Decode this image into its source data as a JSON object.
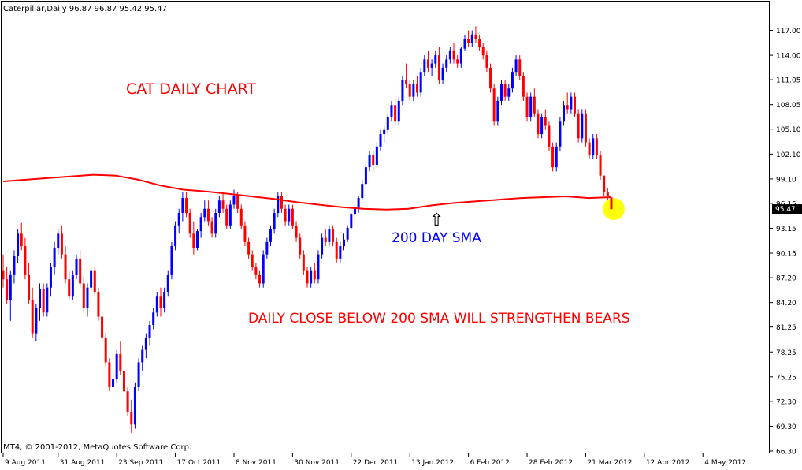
{
  "header": {
    "symbol_info": "Caterpillar,Daily  96.87 96.87 95.42 95.47",
    "copyright": "MT4, © 2001-2012, MetaQuotes Software Corp."
  },
  "annotations": {
    "title": "CAT DAILY CHART",
    "sma_label": "200 DAY SMA",
    "note": "DAILY CLOSE BELOW 200 SMA WILL STRENGTHEN BEARS",
    "arrow_glyph": "⇧"
  },
  "colors": {
    "bull": "#0000ff",
    "bear": "#ff0000",
    "sma": "#ff0000",
    "title_text": "#ff0000",
    "sma_text": "#0000ff",
    "note_text": "#ff0000",
    "highlight": "#ffff00",
    "price_tag_bg": "#000000",
    "price_tag_text": "#ffffff"
  },
  "chart_data": {
    "type": "candlestick",
    "title": "CAT DAILY CHART",
    "y_axis": {
      "ylim": [
        66.3,
        118.0
      ],
      "ticks": [
        "117.00",
        "114.00",
        "111.05",
        "108.05",
        "105.10",
        "102.10",
        "99.10",
        "96.15",
        "93.15",
        "90.15",
        "87.20",
        "84.20",
        "81.25",
        "78.25",
        "75.25",
        "72.30",
        "69.30",
        "66.30"
      ],
      "tick_values": [
        117.0,
        114.0,
        111.05,
        108.05,
        105.1,
        102.1,
        99.1,
        96.15,
        93.15,
        90.15,
        87.2,
        84.2,
        81.25,
        78.25,
        75.25,
        72.3,
        69.3,
        66.3
      ],
      "position": "right"
    },
    "x_axis": {
      "tick_labels": [
        "9 Aug 2011",
        "31 Aug 2011",
        "23 Sep 2011",
        "17 Oct 2011",
        "8 Nov 2011",
        "30 Nov 2011",
        "22 Dec 2011",
        "13 Jan 2012",
        "6 Feb 2012",
        "28 Feb 2012",
        "21 Mar 2012",
        "12 Apr 2012",
        "4 May 2012"
      ],
      "tick_index": [
        0,
        15,
        31,
        47,
        63,
        79,
        95,
        111,
        127,
        143,
        159,
        175,
        191
      ]
    },
    "last_price": "95.47",
    "last_price_value": 95.47,
    "grid": false,
    "candles_ohlc": [
      [
        88.0,
        90.0,
        86.0,
        87.0
      ],
      [
        87.0,
        88.5,
        84.0,
        84.5
      ],
      [
        84.5,
        88.0,
        82.0,
        87.5
      ],
      [
        87.5,
        90.5,
        86.5,
        89.8
      ],
      [
        89.8,
        93.0,
        89.0,
        92.5
      ],
      [
        92.5,
        93.8,
        90.5,
        91.0
      ],
      [
        91.0,
        92.0,
        87.0,
        87.5
      ],
      [
        87.5,
        89.0,
        84.0,
        84.5
      ],
      [
        84.5,
        86.0,
        80.0,
        80.5
      ],
      [
        80.5,
        84.0,
        79.5,
        83.5
      ],
      [
        83.5,
        86.5,
        82.0,
        85.8
      ],
      [
        85.8,
        86.5,
        82.5,
        83.0
      ],
      [
        83.0,
        86.5,
        82.5,
        86.0
      ],
      [
        86.0,
        89.0,
        85.0,
        88.5
      ],
      [
        88.5,
        91.5,
        87.5,
        90.8
      ],
      [
        90.8,
        93.0,
        90.0,
        92.5
      ],
      [
        92.5,
        93.5,
        89.5,
        90.0
      ],
      [
        90.0,
        91.0,
        86.5,
        87.0
      ],
      [
        87.0,
        88.0,
        84.5,
        85.0
      ],
      [
        85.0,
        88.0,
        84.5,
        87.5
      ],
      [
        87.5,
        90.0,
        87.0,
        89.5
      ],
      [
        89.5,
        90.5,
        86.0,
        86.5
      ],
      [
        86.5,
        87.5,
        83.0,
        83.5
      ],
      [
        83.5,
        86.5,
        82.5,
        86.0
      ],
      [
        86.0,
        88.5,
        85.5,
        88.0
      ],
      [
        88.0,
        88.5,
        85.0,
        85.5
      ],
      [
        85.5,
        86.0,
        82.0,
        82.5
      ],
      [
        82.5,
        83.0,
        79.5,
        80.0
      ],
      [
        80.0,
        80.5,
        76.5,
        77.0
      ],
      [
        77.0,
        77.5,
        73.5,
        74.0
      ],
      [
        74.0,
        75.5,
        72.5,
        75.0
      ],
      [
        75.0,
        78.5,
        74.5,
        78.0
      ],
      [
        78.0,
        79.5,
        75.5,
        76.0
      ],
      [
        76.0,
        77.0,
        73.0,
        73.5
      ],
      [
        73.5,
        74.0,
        70.5,
        71.0
      ],
      [
        71.0,
        72.5,
        68.5,
        69.5
      ],
      [
        69.5,
        74.5,
        69.0,
        74.0
      ],
      [
        74.0,
        77.5,
        73.5,
        77.0
      ],
      [
        77.0,
        79.0,
        76.0,
        78.5
      ],
      [
        78.5,
        80.5,
        77.5,
        80.0
      ],
      [
        80.0,
        82.0,
        79.0,
        81.5
      ],
      [
        81.5,
        83.5,
        81.0,
        83.0
      ],
      [
        83.0,
        85.5,
        82.5,
        85.0
      ],
      [
        85.0,
        86.0,
        82.5,
        83.5
      ],
      [
        83.5,
        86.0,
        83.0,
        85.5
      ],
      [
        85.5,
        88.0,
        85.0,
        87.5
      ],
      [
        87.5,
        91.5,
        87.0,
        91.0
      ],
      [
        91.0,
        94.0,
        90.5,
        93.5
      ],
      [
        93.5,
        95.5,
        92.5,
        95.0
      ],
      [
        95.0,
        97.5,
        94.0,
        96.8
      ],
      [
        96.8,
        97.5,
        94.5,
        95.0
      ],
      [
        95.0,
        95.5,
        92.0,
        92.5
      ],
      [
        92.5,
        94.0,
        90.0,
        90.8
      ],
      [
        90.8,
        93.0,
        90.5,
        92.8
      ],
      [
        92.8,
        95.0,
        92.0,
        94.5
      ],
      [
        94.5,
        96.5,
        94.0,
        95.5
      ],
      [
        95.5,
        96.5,
        93.5,
        94.0
      ],
      [
        94.0,
        94.5,
        92.0,
        92.5
      ],
      [
        92.5,
        95.5,
        92.0,
        95.0
      ],
      [
        95.0,
        97.0,
        94.5,
        96.5
      ],
      [
        96.5,
        97.5,
        95.0,
        95.5
      ],
      [
        95.5,
        96.0,
        93.0,
        93.5
      ],
      [
        93.5,
        96.5,
        93.0,
        96.0
      ],
      [
        96.0,
        97.8,
        95.5,
        97.0
      ],
      [
        97.0,
        97.5,
        95.0,
        95.5
      ],
      [
        95.5,
        96.0,
        93.0,
        93.5
      ],
      [
        93.5,
        94.0,
        91.0,
        91.5
      ],
      [
        91.5,
        92.0,
        89.5,
        90.0
      ],
      [
        90.0,
        90.5,
        88.0,
        88.5
      ],
      [
        88.5,
        89.0,
        87.0,
        87.5
      ],
      [
        87.5,
        88.0,
        86.0,
        86.5
      ],
      [
        86.5,
        90.5,
        86.0,
        90.0
      ],
      [
        90.0,
        92.0,
        89.5,
        91.5
      ],
      [
        91.5,
        93.5,
        91.0,
        93.0
      ],
      [
        93.0,
        95.5,
        92.5,
        95.0
      ],
      [
        95.0,
        97.5,
        94.5,
        97.0
      ],
      [
        97.0,
        97.5,
        95.0,
        95.5
      ],
      [
        95.5,
        96.0,
        93.5,
        94.0
      ],
      [
        94.0,
        96.0,
        93.5,
        95.5
      ],
      [
        95.5,
        96.0,
        93.0,
        93.5
      ],
      [
        93.5,
        94.0,
        91.5,
        92.0
      ],
      [
        92.0,
        92.5,
        89.5,
        90.0
      ],
      [
        90.0,
        90.5,
        87.5,
        88.0
      ],
      [
        88.0,
        88.5,
        86.0,
        86.5
      ],
      [
        86.5,
        88.5,
        86.0,
        88.0
      ],
      [
        88.0,
        89.0,
        86.5,
        87.0
      ],
      [
        87.0,
        90.5,
        86.5,
        90.0
      ],
      [
        90.0,
        92.5,
        89.5,
        92.0
      ],
      [
        92.0,
        93.0,
        91.0,
        91.5
      ],
      [
        91.5,
        93.5,
        91.0,
        93.0
      ],
      [
        93.0,
        93.5,
        91.0,
        91.5
      ],
      [
        91.5,
        92.0,
        89.0,
        89.5
      ],
      [
        89.5,
        91.5,
        89.0,
        91.0
      ],
      [
        91.0,
        92.5,
        90.5,
        91.8
      ],
      [
        91.8,
        93.5,
        91.5,
        93.2
      ],
      [
        93.2,
        95.0,
        93.0,
        94.8
      ],
      [
        94.8,
        96.0,
        94.0,
        95.5
      ],
      [
        95.5,
        97.0,
        95.0,
        96.8
      ],
      [
        96.8,
        99.0,
        96.5,
        98.5
      ],
      [
        98.5,
        101.0,
        98.0,
        100.5
      ],
      [
        100.5,
        102.5,
        100.0,
        102.0
      ],
      [
        102.0,
        102.5,
        100.0,
        100.8
      ],
      [
        100.8,
        103.5,
        100.5,
        103.0
      ],
      [
        103.0,
        105.0,
        102.5,
        104.5
      ],
      [
        104.5,
        105.5,
        103.5,
        105.0
      ],
      [
        105.0,
        107.0,
        104.5,
        106.5
      ],
      [
        106.5,
        108.5,
        106.0,
        108.0
      ],
      [
        108.0,
        109.0,
        105.5,
        106.0
      ],
      [
        106.0,
        109.0,
        105.5,
        108.5
      ],
      [
        108.5,
        111.5,
        108.0,
        111.0
      ],
      [
        111.0,
        113.0,
        110.0,
        110.5
      ],
      [
        110.5,
        111.0,
        108.5,
        109.0
      ],
      [
        109.0,
        111.0,
        108.5,
        110.5
      ],
      [
        110.5,
        111.5,
        109.0,
        109.5
      ],
      [
        109.5,
        112.5,
        109.0,
        112.0
      ],
      [
        112.0,
        114.0,
        111.5,
        113.5
      ],
      [
        113.5,
        114.5,
        112.0,
        112.5
      ],
      [
        112.5,
        113.5,
        111.5,
        113.0
      ],
      [
        113.0,
        114.5,
        112.5,
        114.0
      ],
      [
        114.0,
        115.0,
        110.5,
        111.0
      ],
      [
        111.0,
        113.0,
        110.5,
        112.5
      ],
      [
        112.5,
        114.0,
        112.0,
        113.5
      ],
      [
        113.5,
        115.0,
        113.0,
        114.5
      ],
      [
        114.5,
        115.5,
        113.0,
        113.5
      ],
      [
        113.5,
        114.0,
        112.5,
        113.0
      ],
      [
        113.0,
        115.0,
        112.5,
        114.8
      ],
      [
        114.8,
        116.5,
        114.5,
        116.0
      ],
      [
        116.0,
        117.0,
        115.0,
        115.5
      ],
      [
        115.5,
        117.0,
        115.0,
        116.5
      ],
      [
        116.5,
        117.5,
        115.5,
        116.0
      ],
      [
        116.0,
        116.5,
        114.5,
        115.0
      ],
      [
        115.0,
        115.5,
        113.5,
        114.0
      ],
      [
        114.0,
        114.5,
        112.0,
        112.5
      ],
      [
        112.5,
        113.0,
        109.5,
        110.0
      ],
      [
        110.0,
        110.5,
        105.5,
        106.0
      ],
      [
        106.0,
        109.0,
        105.5,
        108.5
      ],
      [
        108.5,
        111.0,
        108.0,
        110.5
      ],
      [
        110.5,
        111.0,
        108.5,
        109.0
      ],
      [
        109.0,
        110.5,
        108.5,
        110.0
      ],
      [
        110.0,
        112.5,
        109.5,
        112.0
      ],
      [
        112.0,
        114.0,
        111.5,
        113.5
      ],
      [
        113.5,
        114.0,
        111.0,
        111.5
      ],
      [
        111.5,
        112.0,
        108.5,
        109.0
      ],
      [
        109.0,
        109.5,
        106.0,
        106.5
      ],
      [
        106.5,
        109.5,
        106.0,
        109.0
      ],
      [
        109.0,
        110.0,
        106.5,
        107.0
      ],
      [
        107.0,
        107.5,
        104.0,
        104.5
      ],
      [
        104.5,
        107.0,
        104.0,
        106.5
      ],
      [
        106.5,
        107.5,
        105.0,
        105.5
      ],
      [
        105.5,
        106.0,
        102.5,
        103.0
      ],
      [
        103.0,
        103.5,
        100.0,
        100.5
      ],
      [
        100.5,
        103.5,
        100.0,
        103.0
      ],
      [
        103.0,
        106.5,
        102.5,
        106.0
      ],
      [
        106.0,
        108.5,
        105.5,
        108.0
      ],
      [
        108.0,
        109.5,
        107.0,
        107.5
      ],
      [
        107.5,
        109.5,
        107.0,
        109.0
      ],
      [
        109.0,
        109.5,
        106.5,
        107.0
      ],
      [
        107.0,
        107.5,
        103.5,
        104.0
      ],
      [
        104.0,
        107.5,
        103.5,
        107.0
      ],
      [
        107.0,
        107.5,
        103.0,
        103.5
      ],
      [
        103.5,
        104.0,
        101.5,
        102.0
      ],
      [
        102.0,
        104.5,
        101.5,
        104.0
      ],
      [
        104.0,
        104.5,
        101.5,
        102.0
      ],
      [
        102.0,
        102.5,
        99.0,
        99.5
      ],
      [
        99.5,
        99.5,
        97.0,
        97.5
      ],
      [
        97.5,
        98.0,
        96.5,
        97.0
      ],
      [
        96.87,
        96.87,
        95.42,
        95.47
      ]
    ],
    "sma_200": [
      98.8,
      99.0,
      99.2,
      99.4,
      99.6,
      99.5,
      99.0,
      98.3,
      97.8,
      97.6,
      97.3,
      97.0,
      96.7,
      96.3,
      96.0,
      95.7,
      95.5,
      95.4,
      95.5,
      95.9,
      96.2,
      96.4,
      96.6,
      96.8,
      96.9,
      97.0,
      96.8,
      96.9
    ],
    "series": [
      {
        "name": "200 DAY SMA",
        "values_ref": "sma_200"
      }
    ]
  }
}
